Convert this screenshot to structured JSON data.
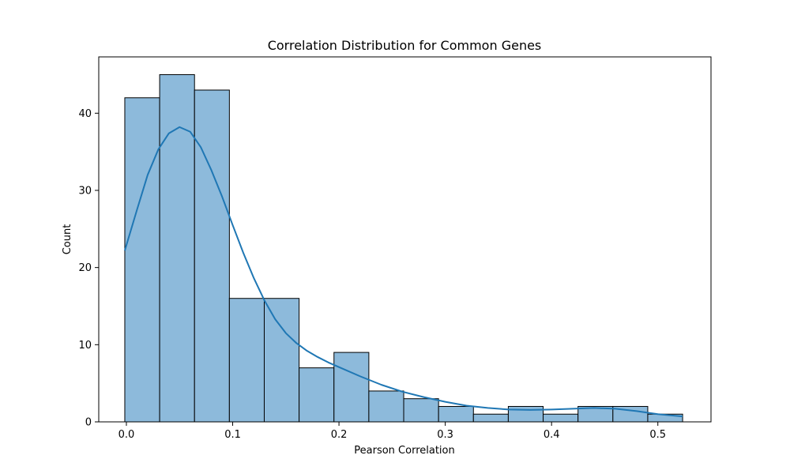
{
  "chart_data": {
    "type": "bar",
    "title": "Correlation Distribution for Common Genes",
    "xlabel": "Pearson Correlation",
    "ylabel": "Count",
    "xlim": [
      -0.026,
      0.55
    ],
    "ylim": [
      0,
      47.3
    ],
    "xticks": [
      0.0,
      0.1,
      0.2,
      0.3,
      0.4,
      0.5
    ],
    "xtick_labels": [
      "0.0",
      "0.1",
      "0.2",
      "0.3",
      "0.4",
      "0.5"
    ],
    "yticks": [
      0,
      10,
      20,
      30,
      40
    ],
    "ytick_labels": [
      "0",
      "10",
      "20",
      "30",
      "40"
    ],
    "bin_edges": [
      -0.0015,
      0.0313,
      0.0641,
      0.0969,
      0.1297,
      0.1625,
      0.1953,
      0.2281,
      0.2609,
      0.2937,
      0.3265,
      0.3593,
      0.3921,
      0.4249,
      0.4577,
      0.4905,
      0.5233
    ],
    "counts": [
      42,
      45,
      43,
      16,
      16,
      7,
      9,
      4,
      3,
      2,
      1,
      2,
      1,
      2,
      2,
      1
    ],
    "kde": {
      "x": [
        -0.0015,
        0.01,
        0.02,
        0.03,
        0.04,
        0.05,
        0.06,
        0.07,
        0.08,
        0.09,
        0.1,
        0.11,
        0.12,
        0.13,
        0.14,
        0.15,
        0.16,
        0.17,
        0.18,
        0.19,
        0.2,
        0.22,
        0.24,
        0.26,
        0.28,
        0.3,
        0.32,
        0.34,
        0.36,
        0.38,
        0.4,
        0.42,
        0.44,
        0.46,
        0.48,
        0.5,
        0.5233
      ],
      "y": [
        22.2,
        27.5,
        32.0,
        35.3,
        37.4,
        38.2,
        37.6,
        35.6,
        32.6,
        29.2,
        25.5,
        21.9,
        18.6,
        15.7,
        13.3,
        11.5,
        10.2,
        9.2,
        8.4,
        7.7,
        7.1,
        5.9,
        4.8,
        3.9,
        3.2,
        2.6,
        2.1,
        1.8,
        1.6,
        1.55,
        1.6,
        1.7,
        1.8,
        1.7,
        1.4,
        1.0,
        0.7
      ]
    },
    "colors": {
      "bar_fill": "#8dbadb",
      "bar_edge": "#000000",
      "kde_line": "#1f77b4"
    },
    "grid": false,
    "legend": "none"
  }
}
